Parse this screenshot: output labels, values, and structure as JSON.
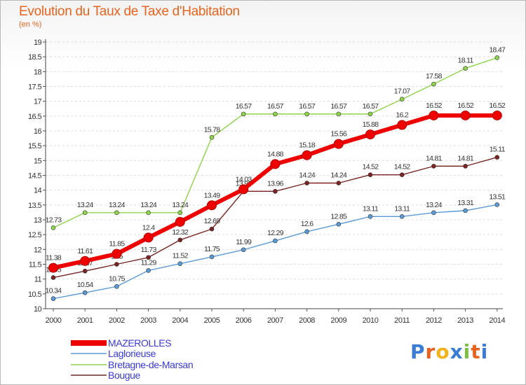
{
  "header": {
    "title": "Evolution du Taux de Taxe d'Habitation",
    "subtitle": "(en %)"
  },
  "logo": {
    "text": "Proxiti"
  },
  "chart_data": {
    "type": "line",
    "title": "Evolution du Taux de Taxe d'Habitation",
    "ylabel": "(en %)",
    "xlabel": "",
    "x": [
      "2000",
      "2001",
      "2002",
      "2003",
      "2004",
      "2005",
      "2006",
      "2007",
      "2008",
      "2009",
      "2010",
      "2011",
      "2012",
      "2013",
      "2014"
    ],
    "ylim": [
      10,
      19
    ],
    "yticks": [
      "10",
      "10.5",
      "11",
      "11.5",
      "12",
      "12.5",
      "13",
      "13.5",
      "14",
      "14.5",
      "15",
      "15.5",
      "16",
      "16.5",
      "17",
      "17.5",
      "18",
      "18.5",
      "19"
    ],
    "grid": "horizontal dashed",
    "legend_position": "bottom-left",
    "series": [
      {
        "name": "MAZEROLLES",
        "color": "#ee0000",
        "values": [
          11.38,
          11.61,
          11.85,
          12.4,
          12.93,
          13.49,
          14.03,
          14.88,
          15.18,
          15.56,
          15.88,
          16.2,
          16.52,
          16.52,
          16.52
        ],
        "labels": [
          "11.38",
          "11.61",
          "11.85",
          "12.4",
          "",
          "13.49",
          "14.03",
          "14.88",
          "15.18",
          "15.56",
          "15.88",
          "16.2",
          "16.52",
          "16.52",
          "16.52"
        ]
      },
      {
        "name": "Laglorieuse",
        "color": "#5b9bd5",
        "values": [
          10.34,
          10.54,
          10.75,
          11.29,
          11.52,
          11.75,
          11.99,
          12.29,
          12.6,
          12.85,
          13.11,
          13.11,
          13.24,
          13.31,
          13.51
        ],
        "labels": [
          "10.34",
          "10.54",
          "10.75",
          "11.29",
          "11.52",
          "11.75",
          "11.99",
          "12.29",
          "12.6",
          "12.85",
          "13.11",
          "13.11",
          "13.24",
          "13.31",
          "13.51"
        ]
      },
      {
        "name": "Bretagne-de-Marsan",
        "color": "#8fd44a",
        "values": [
          12.73,
          13.24,
          13.24,
          13.24,
          13.24,
          15.78,
          16.57,
          16.57,
          16.57,
          16.57,
          16.57,
          17.07,
          17.58,
          18.11,
          18.47
        ],
        "labels": [
          "12.73",
          "13.24",
          "13.24",
          "13.24",
          "13.24",
          "15.78",
          "16.57",
          "16.57",
          "16.57",
          "16.57",
          "16.57",
          "17.07",
          "17.58",
          "18.11",
          "18.47"
        ]
      },
      {
        "name": "Bougue",
        "color": "#7a2424",
        "values": [
          11.05,
          11.27,
          11.5,
          11.73,
          12.32,
          12.69,
          13.96,
          13.96,
          14.24,
          14.24,
          14.52,
          14.52,
          14.81,
          14.81,
          15.11
        ],
        "labels": [
          "11.05",
          "11.27",
          "11.5",
          "11.73",
          "12.32",
          "12.69",
          "13.96",
          "13.96",
          "14.24",
          "14.24",
          "14.52",
          "14.52",
          "14.81",
          "14.81",
          "15.11"
        ]
      }
    ]
  }
}
